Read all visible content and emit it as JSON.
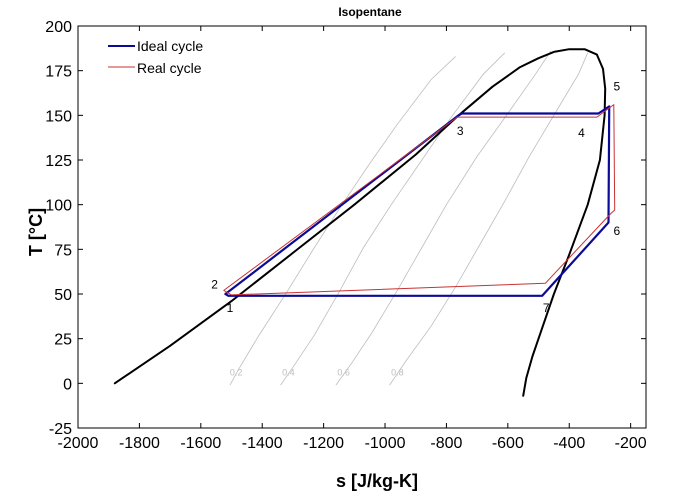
{
  "chart_data": {
    "type": "line",
    "title": "Isopentane",
    "xlabel": "s [J/kg-K]",
    "ylabel": "T [°C]",
    "xlim": [
      -2000,
      -150
    ],
    "ylim": [
      -25,
      200
    ],
    "x_ticks": [
      -2000,
      -1800,
      -1600,
      -1400,
      -1200,
      -1000,
      -800,
      -600,
      -400,
      -200
    ],
    "y_ticks": [
      -25,
      0,
      25,
      50,
      75,
      100,
      125,
      150,
      175,
      200
    ],
    "grid": false,
    "legend_position": "top-left",
    "colors": {
      "dome": "#000000",
      "ideal": "#0b0b96",
      "real": "#c83232",
      "quality": "#bdbdbd"
    },
    "series": [
      {
        "name": "Saturation dome",
        "role": "dome",
        "x": [
          -1880,
          -1700,
          -1500,
          -1300,
          -1100,
          -900,
          -760,
          -650,
          -560,
          -500,
          -450,
          -400,
          -350,
          -310,
          -290,
          -283,
          -285,
          -300,
          -340,
          -400,
          -450,
          -490,
          -520,
          -540,
          -548,
          -550
        ],
        "y": [
          0,
          21,
          46,
          73,
          100,
          128,
          150,
          166,
          177,
          182,
          185.5,
          187,
          187,
          184,
          176,
          165,
          150,
          125,
          100,
          72,
          50,
          30,
          15,
          3,
          -5,
          -7
        ]
      },
      {
        "name": "Ideal cycle",
        "role": "ideal",
        "x": [
          -1510,
          -1520,
          -760,
          -750,
          -305,
          -270,
          -270,
          -272,
          -488,
          -1510
        ],
        "y": [
          49,
          50,
          150,
          151,
          151,
          155,
          153,
          90,
          49,
          49
        ]
      },
      {
        "name": "Real cycle",
        "role": "real",
        "x": [
          -1500,
          -1525,
          -765,
          -750,
          -310,
          -255,
          -252,
          -265,
          -478,
          -1500
        ],
        "y": [
          49.5,
          52,
          149,
          149,
          149,
          156,
          97,
          95,
          56,
          49.5
        ]
      }
    ],
    "quality_lines": [
      {
        "label": "0.2",
        "x": [
          -1505,
          -1480,
          -1410,
          -1320,
          -1230,
          -1140,
          -1050,
          -960,
          -850,
          -770
        ],
        "y": [
          -1,
          7,
          27,
          51,
          76,
          100,
          123,
          145,
          170,
          183
        ]
      },
      {
        "label": "0.4",
        "x": [
          -1340,
          -1300,
          -1230,
          -1150,
          -1070,
          -980,
          -880,
          -780,
          -680,
          -610
        ],
        "y": [
          -1,
          9,
          27,
          51,
          76,
          100,
          125,
          150,
          173,
          185
        ]
      },
      {
        "label": "0.6",
        "x": [
          -1160,
          -1110,
          -1040,
          -960,
          -880,
          -800,
          -700,
          -600,
          -510,
          -460
        ],
        "y": [
          -1,
          11,
          29,
          52,
          76,
          100,
          127,
          151,
          173,
          186
        ]
      },
      {
        "label": "0.8",
        "x": [
          -985,
          -930,
          -850,
          -770,
          -690,
          -610,
          -530,
          -440,
          -370,
          -340
        ],
        "y": [
          -1,
          13,
          32,
          54,
          78,
          102,
          127,
          153,
          173,
          185
        ]
      }
    ],
    "quality_label_positions": [
      {
        "label": "0.2",
        "x": -1515,
        "y": 0
      },
      {
        "label": "0.4",
        "x": -1345,
        "y": 0
      },
      {
        "label": "0.6",
        "x": -1165,
        "y": 0
      },
      {
        "label": "0.8",
        "x": -990,
        "y": 0
      }
    ],
    "point_labels": [
      {
        "label": "1",
        "x": -1505,
        "y": 40
      },
      {
        "label": "2",
        "x": -1555,
        "y": 53
      },
      {
        "label": "3",
        "x": -755,
        "y": 139
      },
      {
        "label": "4",
        "x": -360,
        "y": 138
      },
      {
        "label": "5",
        "x": -245,
        "y": 164
      },
      {
        "label": "6",
        "x": -245,
        "y": 83
      },
      {
        "label": "7",
        "x": -475,
        "y": 40
      }
    ],
    "legend": [
      {
        "name": "Ideal cycle",
        "role": "ideal"
      },
      {
        "name": "Real cycle",
        "role": "real"
      }
    ]
  }
}
